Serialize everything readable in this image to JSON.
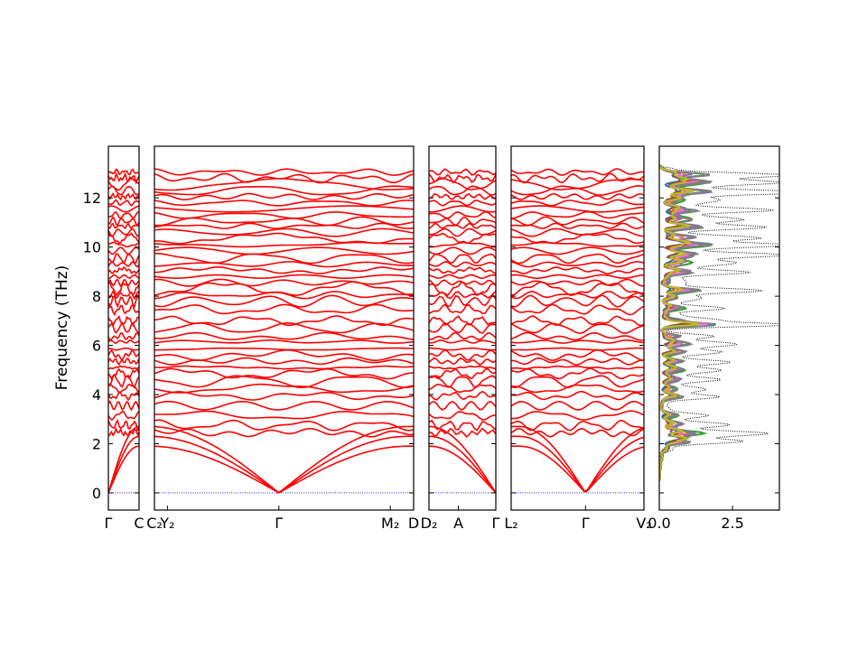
{
  "chart_data": {
    "type": "line",
    "ylabel": "Frequency (THz)",
    "ylim": [
      -0.7,
      14.1
    ],
    "yticks": [
      0,
      2,
      4,
      6,
      8,
      10,
      12
    ],
    "band_color": "#ff0000",
    "zero_line_color": "#0000cc",
    "band_panels": [
      {
        "id": "p1",
        "ticks": [
          {
            "pos": 0,
            "label": "Γ"
          },
          {
            "pos": 1,
            "label": "C"
          }
        ]
      },
      {
        "id": "p2",
        "ticks": [
          {
            "pos": 0,
            "label": "C₂"
          },
          {
            "pos": 0.05,
            "label": "Y₂"
          },
          {
            "pos": 0.48,
            "label": "Γ"
          },
          {
            "pos": 0.91,
            "label": "M₂"
          },
          {
            "pos": 1,
            "label": "D"
          }
        ]
      },
      {
        "id": "p3",
        "ticks": [
          {
            "pos": 0,
            "label": "D₂"
          },
          {
            "pos": 0.44,
            "label": "A"
          },
          {
            "pos": 1,
            "label": "Γ"
          }
        ]
      },
      {
        "id": "p4",
        "ticks": [
          {
            "pos": 0,
            "label": "L₂"
          },
          {
            "pos": 0.56,
            "label": "Γ"
          },
          {
            "pos": 1,
            "label": "V₂"
          }
        ]
      }
    ],
    "dos_panel": {
      "xlim": [
        0,
        4.1
      ],
      "xticks": [
        {
          "value": 0.0,
          "label": "0.0"
        },
        {
          "value": 2.5,
          "label": "2.5"
        }
      ],
      "total_color": "#000000",
      "partial_colors": [
        "#1f77b4",
        "#ff7f0e",
        "#2ca02c",
        "#d62728",
        "#9467bd",
        "#8c564b",
        "#e377c2",
        "#7f7f7f",
        "#bcbd22"
      ]
    }
  }
}
